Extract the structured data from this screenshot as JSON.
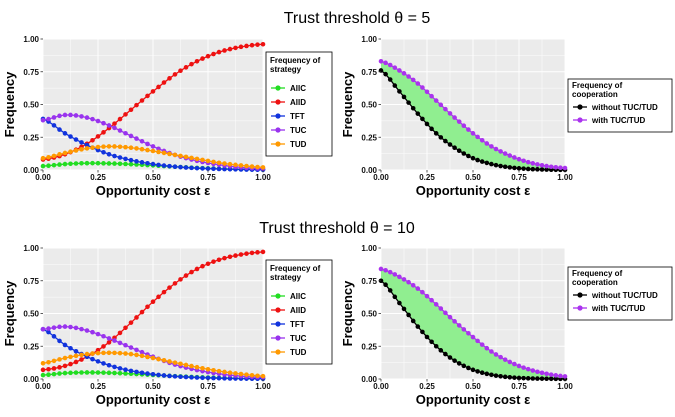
{
  "figure": {
    "row_titles": [
      "Trust threshold θ = 5",
      "Trust threshold θ = 10"
    ]
  },
  "chart_data": [
    {
      "type": "line",
      "panel": "strategy-theta5",
      "xlabel": "Opportunity cost ε",
      "ylabel": "Frequency",
      "xlim": [
        0,
        1
      ],
      "ylim": [
        0,
        1
      ],
      "xticks": [
        "0.00",
        "0.25",
        "0.50",
        "0.75",
        "1.00"
      ],
      "yticks": [
        "0.00",
        "0.25",
        "0.50",
        "0.75",
        "1.00"
      ],
      "grid": true,
      "legend": {
        "title_lines": [
          "Frequency of",
          "strategy"
        ],
        "placement": "right"
      },
      "x": [
        0,
        0.1,
        0.2,
        0.3,
        0.4,
        0.5,
        0.6,
        0.7,
        0.8,
        0.9,
        1.0
      ],
      "series": [
        {
          "name": "AllC",
          "color": "#22dd22",
          "values": [
            0.03,
            0.045,
            0.052,
            0.05,
            0.044,
            0.035,
            0.025,
            0.016,
            0.01,
            0.006,
            0.003
          ]
        },
        {
          "name": "AllD",
          "color": "#ee1111",
          "values": [
            0.08,
            0.12,
            0.2,
            0.32,
            0.46,
            0.6,
            0.73,
            0.83,
            0.9,
            0.94,
            0.96
          ]
        },
        {
          "name": "TFT",
          "color": "#1133dd",
          "values": [
            0.39,
            0.28,
            0.19,
            0.12,
            0.075,
            0.045,
            0.025,
            0.014,
            0.008,
            0.004,
            0.002
          ]
        },
        {
          "name": "TUC",
          "color": "#9933ee",
          "values": [
            0.38,
            0.42,
            0.4,
            0.34,
            0.26,
            0.18,
            0.115,
            0.07,
            0.04,
            0.02,
            0.01
          ]
        },
        {
          "name": "TUD",
          "color": "#ff9900",
          "values": [
            0.09,
            0.13,
            0.165,
            0.18,
            0.17,
            0.145,
            0.115,
            0.085,
            0.055,
            0.035,
            0.02
          ]
        }
      ]
    },
    {
      "type": "area",
      "panel": "cooperation-theta5",
      "xlabel": "Opportunity cost ε",
      "ylabel": "Frequency",
      "xlim": [
        0,
        1
      ],
      "ylim": [
        0,
        1
      ],
      "xticks": [
        "0.00",
        "0.25",
        "0.50",
        "0.75",
        "1.00"
      ],
      "yticks": [
        "0.00",
        "0.25",
        "0.50",
        "0.75",
        "1.00"
      ],
      "grid": true,
      "fill_between_color": "#90ee90",
      "legend": {
        "title_lines": [
          "Frequency of",
          "cooperation"
        ],
        "placement": "right"
      },
      "x": [
        0,
        0.1,
        0.2,
        0.3,
        0.4,
        0.5,
        0.6,
        0.7,
        0.8,
        0.9,
        1.0
      ],
      "series": [
        {
          "name": "without TUC/TUD",
          "color": "#000000",
          "values": [
            0.76,
            0.6,
            0.43,
            0.28,
            0.17,
            0.09,
            0.045,
            0.02,
            0.008,
            0.003,
            0.001
          ]
        },
        {
          "name": "with TUC/TUD",
          "color": "#aa33ee",
          "values": [
            0.83,
            0.76,
            0.66,
            0.53,
            0.4,
            0.28,
            0.18,
            0.11,
            0.06,
            0.03,
            0.015
          ]
        }
      ]
    },
    {
      "type": "line",
      "panel": "strategy-theta10",
      "xlabel": "Opportunity cost ε",
      "ylabel": "Frequency",
      "xlim": [
        0,
        1
      ],
      "ylim": [
        0,
        1
      ],
      "xticks": [
        "0.00",
        "0.25",
        "0.50",
        "0.75",
        "1.00"
      ],
      "yticks": [
        "0.00",
        "0.25",
        "0.50",
        "0.75",
        "1.00"
      ],
      "grid": true,
      "legend": {
        "title_lines": [
          "Frequency of",
          "strategy"
        ],
        "placement": "right"
      },
      "x": [
        0,
        0.1,
        0.2,
        0.3,
        0.4,
        0.5,
        0.6,
        0.7,
        0.8,
        0.9,
        1.0
      ],
      "series": [
        {
          "name": "AllC",
          "color": "#22dd22",
          "values": [
            0.03,
            0.045,
            0.05,
            0.047,
            0.04,
            0.031,
            0.022,
            0.014,
            0.009,
            0.005,
            0.003
          ]
        },
        {
          "name": "AllD",
          "color": "#ee1111",
          "values": [
            0.07,
            0.1,
            0.17,
            0.28,
            0.43,
            0.59,
            0.73,
            0.84,
            0.91,
            0.95,
            0.97
          ]
        },
        {
          "name": "TFT",
          "color": "#1133dd",
          "values": [
            0.38,
            0.26,
            0.17,
            0.105,
            0.062,
            0.036,
            0.02,
            0.011,
            0.006,
            0.003,
            0.002
          ]
        },
        {
          "name": "TUC",
          "color": "#9933ee",
          "values": [
            0.38,
            0.4,
            0.37,
            0.31,
            0.24,
            0.17,
            0.11,
            0.068,
            0.04,
            0.022,
            0.012
          ]
        },
        {
          "name": "TUD",
          "color": "#ff9900",
          "values": [
            0.12,
            0.16,
            0.19,
            0.2,
            0.19,
            0.16,
            0.125,
            0.09,
            0.06,
            0.038,
            0.022
          ]
        }
      ]
    },
    {
      "type": "area",
      "panel": "cooperation-theta10",
      "xlabel": "Opportunity cost ε",
      "ylabel": "Frequency",
      "xlim": [
        0,
        1
      ],
      "ylim": [
        0,
        1
      ],
      "xticks": [
        "0.00",
        "0.25",
        "0.50",
        "0.75",
        "1.00"
      ],
      "yticks": [
        "0.00",
        "0.25",
        "0.50",
        "0.75",
        "1.00"
      ],
      "grid": true,
      "fill_between_color": "#90ee90",
      "legend": {
        "title_lines": [
          "Frequency of",
          "cooperation"
        ],
        "placement": "right"
      },
      "x": [
        0,
        0.1,
        0.2,
        0.3,
        0.4,
        0.5,
        0.6,
        0.7,
        0.8,
        0.9,
        1.0
      ],
      "series": [
        {
          "name": "without TUC/TUD",
          "color": "#000000",
          "values": [
            0.75,
            0.58,
            0.4,
            0.25,
            0.14,
            0.07,
            0.032,
            0.013,
            0.005,
            0.002,
            0.001
          ]
        },
        {
          "name": "with TUC/TUD",
          "color": "#aa33ee",
          "values": [
            0.84,
            0.78,
            0.69,
            0.57,
            0.44,
            0.32,
            0.21,
            0.13,
            0.075,
            0.04,
            0.02
          ]
        }
      ]
    }
  ]
}
